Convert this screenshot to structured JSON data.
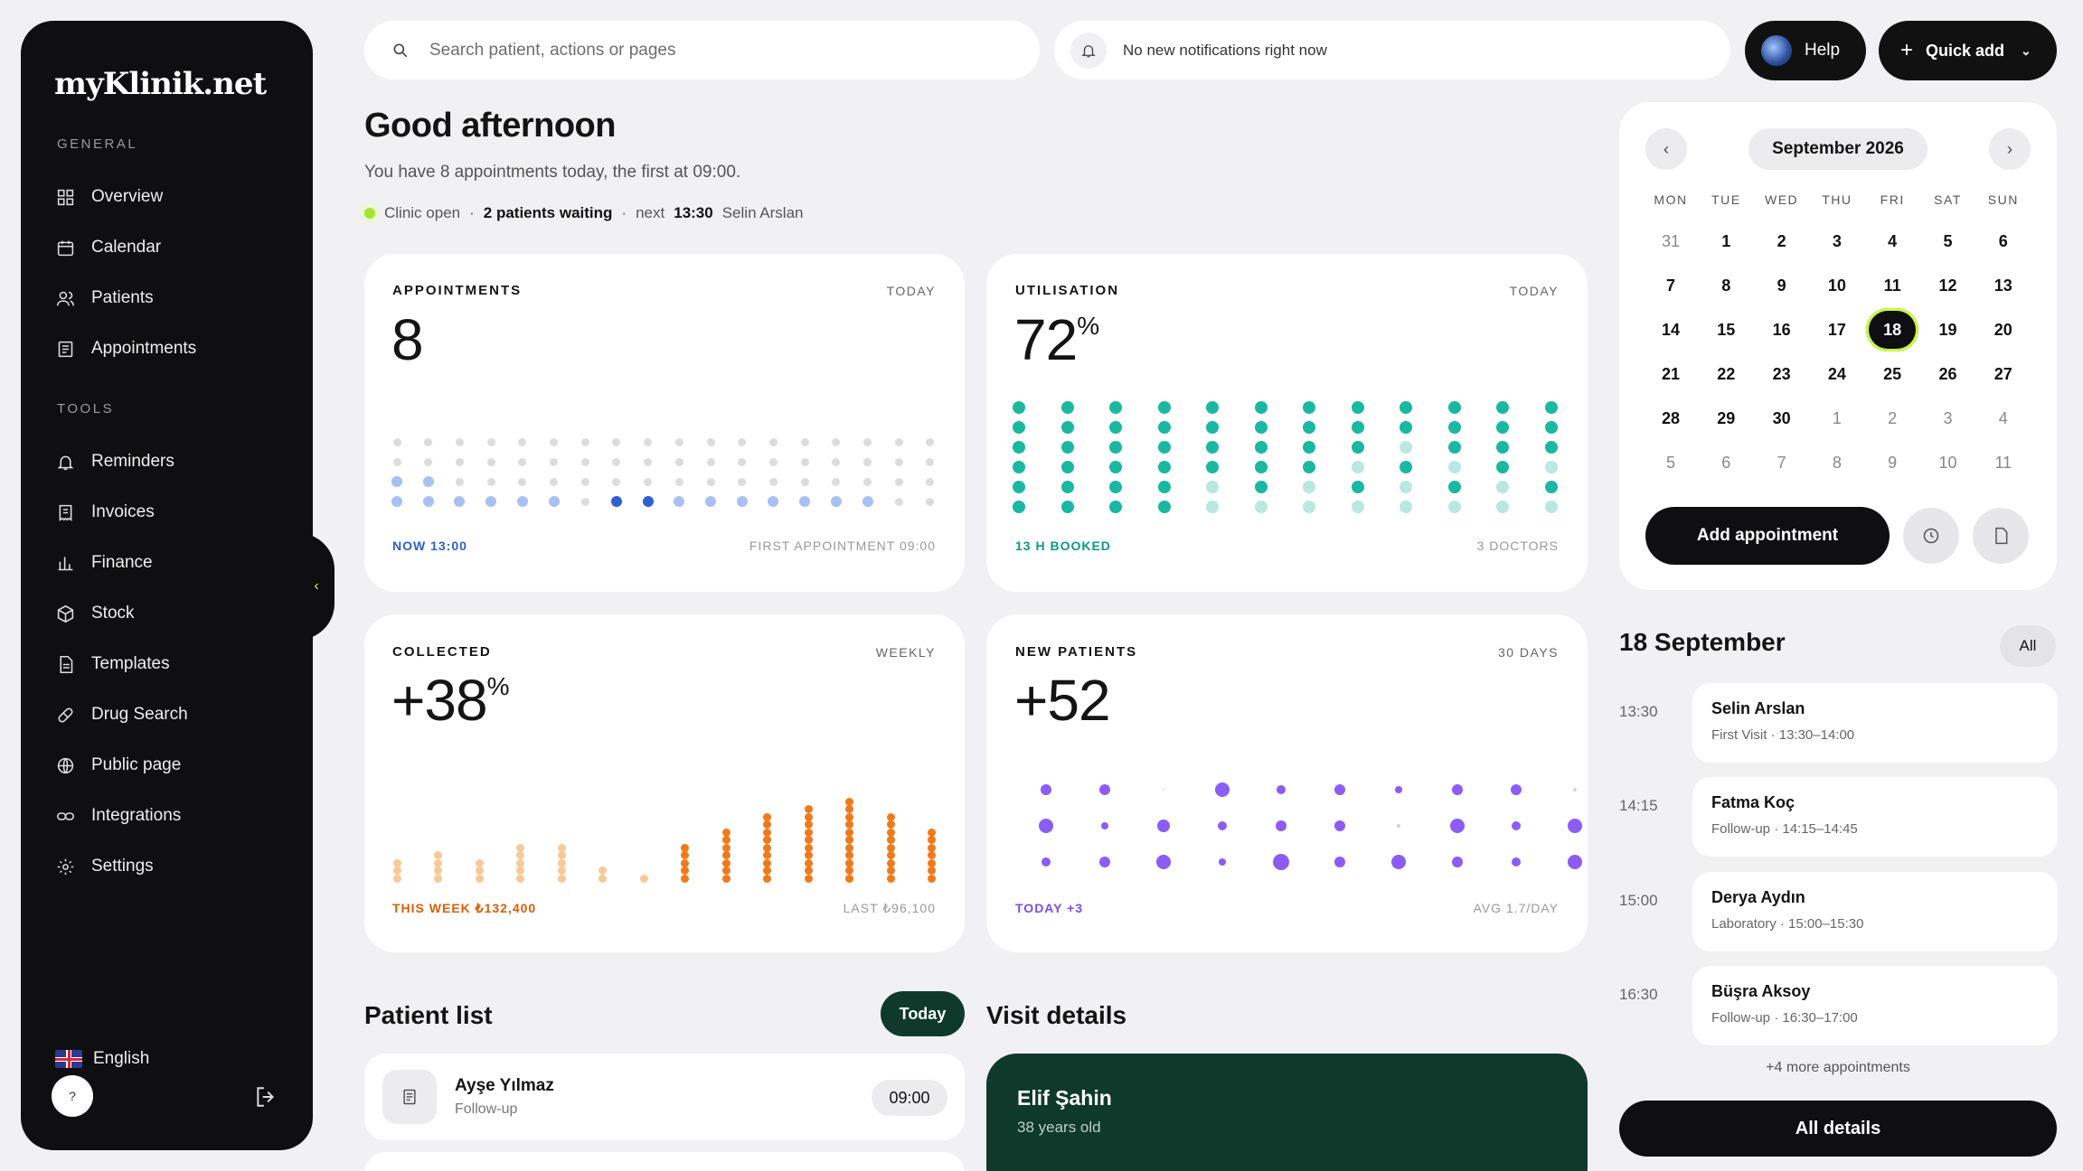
{
  "brand": {
    "logo_text": "myKlinik.net"
  },
  "sidebar": {
    "general_label": "GENERAL",
    "general": [
      {
        "label": "Overview",
        "icon": "grid-icon"
      },
      {
        "label": "Calendar",
        "icon": "calendar-icon"
      },
      {
        "label": "Patients",
        "icon": "users-icon"
      },
      {
        "label": "Appointments",
        "icon": "clipboard-icon"
      }
    ],
    "tools_label": "TOOLS",
    "tools": [
      {
        "label": "Reminders",
        "icon": "bell-icon"
      },
      {
        "label": "Invoices",
        "icon": "invoice-icon"
      },
      {
        "label": "Finance",
        "icon": "bar-chart-icon"
      },
      {
        "label": "Stock",
        "icon": "box-icon"
      },
      {
        "label": "Templates",
        "icon": "document-icon"
      },
      {
        "label": "Drug Search",
        "icon": "pill-icon"
      },
      {
        "label": "Public page",
        "icon": "globe-icon"
      },
      {
        "label": "Integrations",
        "icon": "link-icon"
      },
      {
        "label": "Settings",
        "icon": "gear-icon"
      }
    ],
    "language": "English",
    "help_short": "?"
  },
  "topbar": {
    "search_placeholder": "Search patient, actions or pages",
    "notification": "No new notifications right now",
    "help_label": "Help",
    "quick_add_label": "Quick add"
  },
  "greeting": {
    "title": "Good afternoon",
    "subtitle": "You have 8 appointments today, the first at 09:00.",
    "clinic_status": "Clinic open",
    "waiting": "2 patients waiting",
    "next_label": "next",
    "next_time": "13:30",
    "next_patient": "Selin Arslan"
  },
  "stats": {
    "appointments": {
      "title": "APPOINTMENTS",
      "period": "TODAY",
      "value": "8",
      "foot_left": "NOW 13:00",
      "foot_right": "FIRST APPOINTMENT 09:00"
    },
    "utilisation": {
      "title": "UTILISATION",
      "period": "TODAY",
      "value": "72",
      "unit": "%",
      "foot_left": "13 H BOOKED",
      "foot_right": "3 DOCTORS"
    },
    "collected": {
      "title": "COLLECTED",
      "period": "WEEKLY",
      "value": "+38",
      "unit": "%",
      "foot_left": "THIS WEEK ₺132,400",
      "foot_right": "LAST ₺96,100"
    },
    "new_patients": {
      "title": "NEW PATIENTS",
      "period": "30 DAYS",
      "value": "+52",
      "foot_left": "TODAY +3",
      "foot_right": "AVG 1.7/DAY"
    }
  },
  "colors": {
    "appointments": "#5b86e5",
    "utilisation": "#1ab8a0",
    "collected": "#f07a1a",
    "new_patients": "#8b5cf6",
    "accent": "#c8ff3c",
    "dark_green": "#0f3a2b"
  },
  "calendar": {
    "month": "September 2026",
    "weekdays": [
      "MON",
      "TUE",
      "WED",
      "THU",
      "FRI",
      "SAT",
      "SUN"
    ],
    "weeks": [
      [
        "31",
        "1",
        "2",
        "3",
        "4",
        "5",
        "6"
      ],
      [
        "7",
        "8",
        "9",
        "10",
        "11",
        "12",
        "13"
      ],
      [
        "14",
        "15",
        "16",
        "17",
        "18",
        "19",
        "20"
      ],
      [
        "21",
        "22",
        "23",
        "24",
        "25",
        "26",
        "27"
      ],
      [
        "28",
        "29",
        "30",
        "1",
        "2",
        "3",
        "4"
      ],
      [
        "5",
        "6",
        "7",
        "8",
        "9",
        "10",
        "11"
      ]
    ],
    "selected": "18",
    "add_label": "Add appointment"
  },
  "schedule": {
    "title": "18 September",
    "all_label": "All",
    "items": [
      {
        "time": "13:30",
        "name": "Selin Arslan",
        "detail": "First Visit · 13:30–14:00"
      },
      {
        "time": "14:15",
        "name": "Fatma Koç",
        "detail": "Follow-up · 14:15–14:45"
      },
      {
        "time": "15:00",
        "name": "Derya Aydın",
        "detail": "Laboratory · 15:00–15:30"
      },
      {
        "time": "16:30",
        "name": "Büşra Aksoy",
        "detail": "Follow-up · 16:30–17:00"
      }
    ],
    "more": "+4 more appointments",
    "all_details": "All details"
  },
  "patient_list": {
    "title": "Patient list",
    "filter": "Today",
    "rows": [
      {
        "name": "Ayşe Yılmaz",
        "type": "Follow-up",
        "time": "09:00"
      }
    ]
  },
  "visit": {
    "title": "Visit details",
    "name": "Elif Şahin",
    "age": "38 years old"
  }
}
